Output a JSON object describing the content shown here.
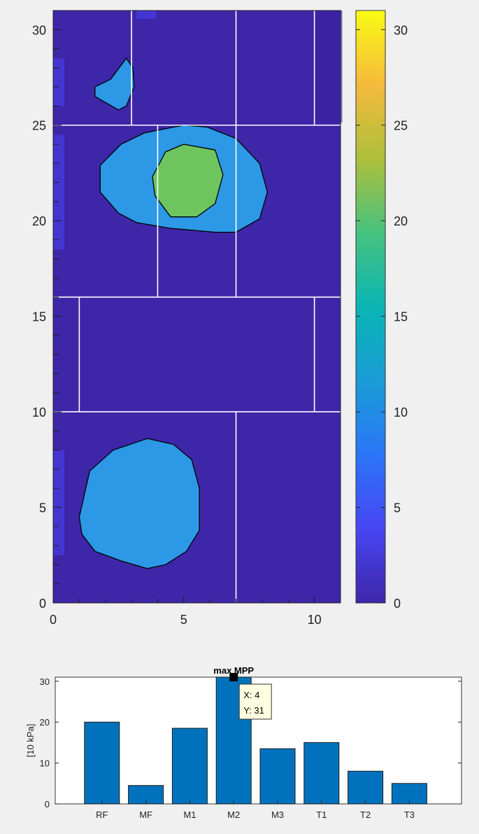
{
  "chart_data": [
    {
      "type": "heatmap",
      "xlim": [
        0,
        11
      ],
      "ylim": [
        0,
        31
      ],
      "x_ticks": [
        0,
        5,
        10
      ],
      "y_ticks": [
        0,
        5,
        10,
        15,
        20,
        25,
        30
      ],
      "grid": false,
      "background_value": 0,
      "zone_boundaries": {
        "horizontal_y": [
          10,
          16,
          25
        ],
        "vertical_segments": [
          {
            "x": 7,
            "from_y": 0,
            "to_y": 10
          },
          {
            "x": 1,
            "from_y": 10,
            "to_y": 16
          },
          {
            "x": 10,
            "from_y": 10,
            "to_y": 16
          },
          {
            "x": 4,
            "from_y": 16,
            "to_y": 25
          },
          {
            "x": 7,
            "from_y": 16,
            "to_y": 25
          },
          {
            "x": 3,
            "from_y": 25,
            "to_y": 31
          },
          {
            "x": 7,
            "from_y": 25,
            "to_y": 31
          },
          {
            "x": 10,
            "from_y": 25,
            "to_y": 31
          }
        ]
      },
      "contour_regions": [
        {
          "level": 10,
          "outline": [
            [
              2.2,
              27.4
            ],
            [
              2.8,
              28.5
            ],
            [
              3.05,
              28.0
            ],
            [
              3.1,
              27.0
            ],
            [
              2.8,
              26.0
            ],
            [
              2.5,
              25.8
            ],
            [
              1.6,
              26.5
            ],
            [
              1.6,
              27.0
            ]
          ]
        },
        {
          "level": 10,
          "outline": [
            [
              1.8,
              22.9
            ],
            [
              2.6,
              24.0
            ],
            [
              3.5,
              24.6
            ],
            [
              5.0,
              25.0
            ],
            [
              5.9,
              24.9
            ],
            [
              7.0,
              24.3
            ],
            [
              7.9,
              23.0
            ],
            [
              8.2,
              21.5
            ],
            [
              7.9,
              20.1
            ],
            [
              7.0,
              19.4
            ],
            [
              6.2,
              19.4
            ],
            [
              4.5,
              19.6
            ],
            [
              3.2,
              19.9
            ],
            [
              2.5,
              20.4
            ],
            [
              1.8,
              21.5
            ]
          ]
        },
        {
          "level": 20,
          "outline": [
            [
              3.8,
              22.3
            ],
            [
              4.3,
              23.6
            ],
            [
              5.0,
              24.0
            ],
            [
              6.2,
              23.7
            ],
            [
              6.5,
              22.4
            ],
            [
              6.2,
              20.9
            ],
            [
              5.5,
              20.2
            ],
            [
              4.5,
              20.2
            ],
            [
              3.9,
              21.3
            ]
          ]
        },
        {
          "level": 10,
          "outline": [
            [
              1.0,
              4.5
            ],
            [
              1.4,
              6.9
            ],
            [
              2.3,
              8.0
            ],
            [
              3.6,
              8.6
            ],
            [
              4.6,
              8.3
            ],
            [
              5.3,
              7.5
            ],
            [
              5.6,
              6.0
            ],
            [
              5.6,
              3.8
            ],
            [
              5.1,
              2.7
            ],
            [
              4.3,
              2.0
            ],
            [
              3.6,
              1.8
            ],
            [
              2.6,
              2.2
            ],
            [
              1.6,
              2.7
            ],
            [
              1.1,
              3.6
            ]
          ]
        }
      ],
      "colorbar": {
        "range": [
          0,
          31
        ],
        "ticks": [
          0,
          5,
          10,
          15,
          20,
          25,
          30
        ]
      }
    },
    {
      "type": "bar",
      "title": "max MPP",
      "ylabel": "[10 kPa]",
      "categories": [
        "RF",
        "MF",
        "M1",
        "M2",
        "M3",
        "T1",
        "T2",
        "T3"
      ],
      "values": [
        20,
        4.5,
        18.5,
        31,
        13.5,
        15,
        8,
        5
      ],
      "ylim": [
        0,
        31
      ],
      "y_ticks": [
        0,
        10,
        20,
        30
      ],
      "bar_color": "#0072bd",
      "datatip": {
        "x_label": "X: 4",
        "y_label": "Y: 31",
        "x": 4,
        "y": 31
      }
    }
  ],
  "colors": {
    "parula_low": "#3e26a8",
    "parula_10": "#2c98e6",
    "parula_20": "#6ec55e",
    "parula_high": "#f9fb14",
    "figure_bg": "#f0f0f0",
    "bar": "#0072bd"
  }
}
